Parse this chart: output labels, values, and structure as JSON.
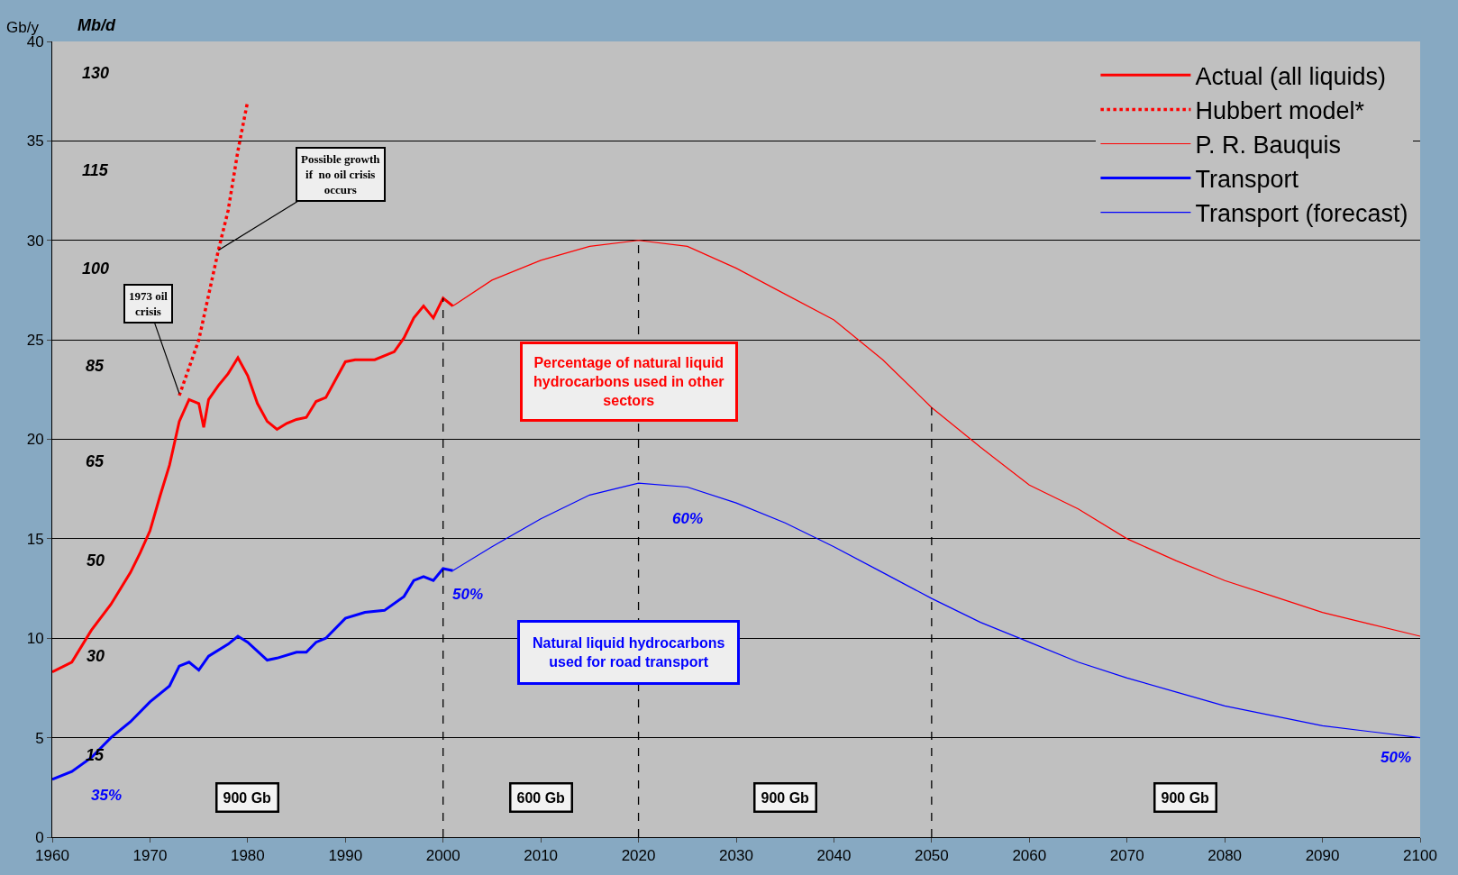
{
  "chart_data": {
    "type": "line",
    "ylabel": "Gb/y",
    "xlim": [
      1960,
      2100
    ],
    "xticks": [
      1960,
      1970,
      1980,
      1990,
      2000,
      2010,
      2020,
      2030,
      2040,
      2050,
      2060,
      2070,
      2080,
      2090,
      2100
    ],
    "ylim": [
      0,
      40
    ],
    "yticks": [
      0,
      5,
      10,
      15,
      20,
      25,
      30,
      35,
      40
    ],
    "grid": "y",
    "legend": "top right",
    "marker": "none",
    "series": [
      {
        "name": "Actual (all liquids)",
        "color": "#ff0000",
        "line_style": "solid",
        "x": [
          1960,
          1962,
          1964,
          1966,
          1967,
          1968,
          1969,
          1970,
          1971,
          1972,
          1973,
          1974,
          1975,
          1975.5,
          1976,
          1977,
          1978,
          1979,
          1980,
          1981,
          1982,
          1983,
          1984,
          1985,
          1986,
          1987,
          1988,
          1989,
          1990,
          1991,
          1993,
          1995,
          1996,
          1997,
          1998,
          1999,
          2000,
          2001
        ],
        "values": [
          8.3,
          8.8,
          10.4,
          11.7,
          12.5,
          13.3,
          14.3,
          15.4,
          17.1,
          18.7,
          20.9,
          22.0,
          21.8,
          20.6,
          22.0,
          22.7,
          23.3,
          24.1,
          23.2,
          21.8,
          20.9,
          20.5,
          20.8,
          21.0,
          21.1,
          21.9,
          22.1,
          23.0,
          23.9,
          24.0,
          24.0,
          24.4,
          25.1,
          26.1,
          26.7,
          26.1,
          27.1,
          26.7
        ]
      },
      {
        "name": "Hubbert model*",
        "color": "#ff0000",
        "line_style": "dotted",
        "x": [
          1973,
          1975,
          1977,
          1978,
          1979,
          1980
        ],
        "values": [
          22.2,
          25.0,
          29.5,
          31.5,
          34.5,
          37.0
        ]
      },
      {
        "name": "P. R. Bauquis",
        "color": "#ff0000",
        "line_style": "solid",
        "x": [
          2001,
          2005,
          2010,
          2015,
          2020,
          2025,
          2030,
          2035,
          2040,
          2045,
          2050,
          2055,
          2060,
          2065,
          2070,
          2075,
          2080,
          2085,
          2090,
          2095,
          2100
        ],
        "values": [
          26.7,
          28.0,
          29.0,
          29.7,
          30.0,
          29.7,
          28.6,
          27.3,
          26.0,
          24.0,
          21.6,
          19.6,
          17.7,
          16.5,
          15.0,
          13.9,
          12.9,
          12.1,
          11.3,
          10.7,
          10.1
        ]
      },
      {
        "name": "Transport",
        "color": "#0000ff",
        "line_style": "solid",
        "x": [
          1960,
          1962,
          1964,
          1966,
          1968,
          1970,
          1972,
          1973,
          1974,
          1975,
          1976,
          1978,
          1979,
          1980,
          1982,
          1983,
          1985,
          1986,
          1987,
          1988,
          1990,
          1992,
          1994,
          1996,
          1997,
          1998,
          1999,
          2000,
          2001
        ],
        "values": [
          2.9,
          3.3,
          4.0,
          5.0,
          5.8,
          6.8,
          7.6,
          8.6,
          8.8,
          8.4,
          9.1,
          9.7,
          10.1,
          9.8,
          8.9,
          9.0,
          9.3,
          9.3,
          9.8,
          10.0,
          11.0,
          11.3,
          11.4,
          12.1,
          12.9,
          13.1,
          12.9,
          13.5,
          13.4
        ]
      },
      {
        "name": "Transport (forecast)",
        "color": "#0000ff",
        "line_style": "solid",
        "x": [
          2001,
          2005,
          2010,
          2015,
          2020,
          2025,
          2030,
          2035,
          2040,
          2045,
          2050,
          2055,
          2060,
          2065,
          2070,
          2075,
          2080,
          2085,
          2090,
          2095,
          2100
        ],
        "values": [
          13.4,
          14.6,
          16.0,
          17.2,
          17.8,
          17.6,
          16.8,
          15.8,
          14.6,
          13.3,
          12.0,
          10.8,
          9.8,
          8.8,
          8.0,
          7.3,
          6.6,
          6.1,
          5.6,
          5.3,
          5.0
        ]
      }
    ],
    "ref_lines": [
      {
        "axis": "x",
        "value": 2000,
        "color": "#000000",
        "line_style": "dashed"
      },
      {
        "axis": "x",
        "value": 2020,
        "color": "#000000",
        "line_style": "dashed"
      },
      {
        "axis": "x",
        "value": 2050,
        "color": "#000000",
        "line_style": "dashed"
      }
    ],
    "annotations": [
      {
        "text": "Possible growth\nif  no oil crisis\noccurs",
        "x": 1977,
        "y": 29.5
      },
      {
        "text": "1973 oil\ncrisis",
        "x": 1973,
        "y": 22.3
      },
      "Percentage of natural liquid\nhydrocarbons used in other\nsectors",
      "Natural liquid hydrocarbons\nused for road transport",
      "900 Gb",
      "600 Gb",
      "900 Gb",
      "900 Gb",
      "35%",
      "50%",
      "60%",
      "50%",
      "Mb/d",
      "130",
      "115",
      "100",
      "85",
      "65",
      "50",
      "30",
      "15"
    ]
  }
}
